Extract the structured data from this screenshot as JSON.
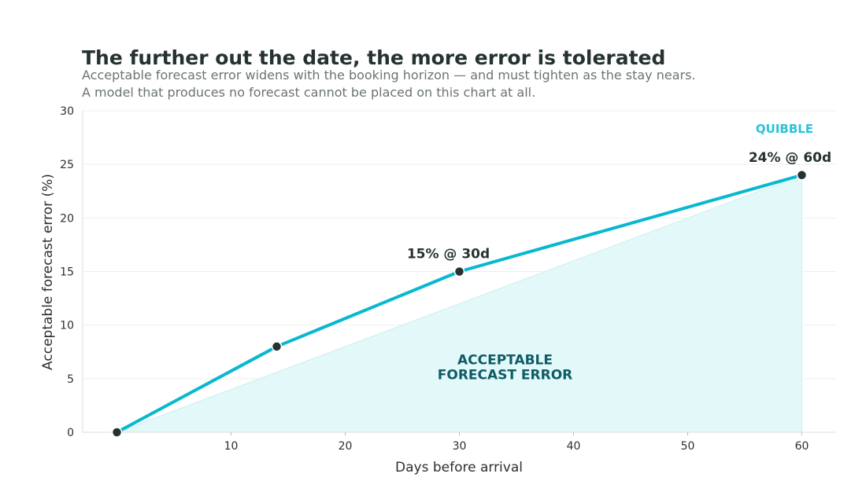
{
  "chart_data": {
    "type": "line",
    "title": "The further out the date, the more error is tolerated",
    "subtitle_lines": [
      "Acceptable forecast error widens with the booking horizon — and must tighten as the stay nears.",
      "A model that produces no forecast cannot be placed on this chart at all."
    ],
    "xlabel": "Days before arrival",
    "ylabel": "Acceptable forecast error (%)",
    "xlim": [
      -3,
      63
    ],
    "ylim": [
      0,
      30
    ],
    "xticks": [
      10,
      20,
      30,
      40,
      50,
      60
    ],
    "yticks": [
      0,
      5,
      10,
      15,
      20,
      25,
      30
    ],
    "grid": true,
    "series": [
      {
        "x": [
          0,
          14,
          30,
          60
        ],
        "y": [
          0,
          8,
          15,
          24
        ]
      }
    ],
    "shaded_region": {
      "polygon": [
        [
          0,
          0
        ],
        [
          60,
          24
        ],
        [
          60,
          0
        ]
      ],
      "label_lines": [
        "ACCEPTABLE",
        "FORECAST ERROR"
      ],
      "label_at": [
        34,
        6.8
      ]
    },
    "annotations": [
      {
        "text": "15% @ 30d",
        "x": 30,
        "y": 15
      },
      {
        "text": "24% @ 60d",
        "x": 60,
        "y": 24
      }
    ],
    "brand": "QUIBBLE",
    "colors": {
      "line": "#08b8d0",
      "marker": "#263232",
      "fill": "#e3f8f9",
      "grid": "#eeeeee",
      "axis": "#dddddd"
    }
  }
}
